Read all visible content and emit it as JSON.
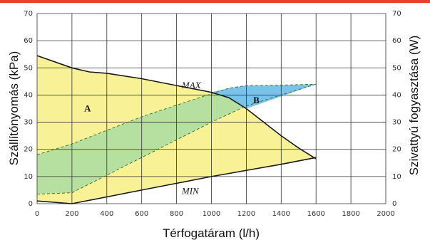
{
  "chart_data": {
    "type": "area",
    "xlabel": "Térfogatáram (l/h)",
    "ylabel": "Szállítónyomás (kPa)",
    "y2label": "Szivattyú fogyasztása (W)",
    "xlim": [
      0,
      2000
    ],
    "ylim": [
      0,
      70
    ],
    "y2lim": [
      0,
      70
    ],
    "x_ticks": [
      0,
      200,
      400,
      600,
      800,
      1000,
      1200,
      1400,
      1600,
      1800,
      2000
    ],
    "y_ticks": [
      0,
      10,
      20,
      30,
      40,
      50,
      60,
      70
    ],
    "grid": true,
    "curves": [
      {
        "name": "MAX",
        "x": [
          0,
          200,
          300,
          400,
          600,
          800,
          1000,
          1100,
          1200,
          1300,
          1400,
          1500,
          1600
        ],
        "y": [
          54.5,
          50,
          48.5,
          48,
          46,
          43.5,
          41,
          39,
          35,
          30,
          25,
          20.5,
          16.5
        ]
      },
      {
        "name": "MIN",
        "x": [
          0,
          200,
          600,
          1000,
          1400,
          1600
        ],
        "y": [
          1,
          0,
          5,
          10,
          14.5,
          17
        ]
      }
    ],
    "power_band": {
      "upper": {
        "x": [
          0,
          200,
          600,
          1000,
          1100,
          1200,
          1300,
          1600
        ],
        "y": [
          18,
          22,
          32,
          40.5,
          42.5,
          43.5,
          43.5,
          44
        ]
      },
      "lower": {
        "x": [
          0,
          200,
          600,
          1000,
          1200,
          1600
        ],
        "y": [
          3.5,
          4,
          17,
          30,
          36,
          44
        ]
      }
    },
    "regions": [
      {
        "name": "A",
        "x": 270,
        "y": 34
      },
      {
        "name": "B",
        "x": 1240,
        "y": 37
      }
    ],
    "colors": {
      "region_a": "#f9f196",
      "power_band": "#b6e0a0",
      "region_b": "#79c3ea",
      "curve": "#1a1a1a",
      "grid": "#333333",
      "top_bar": "#e8402a"
    }
  }
}
